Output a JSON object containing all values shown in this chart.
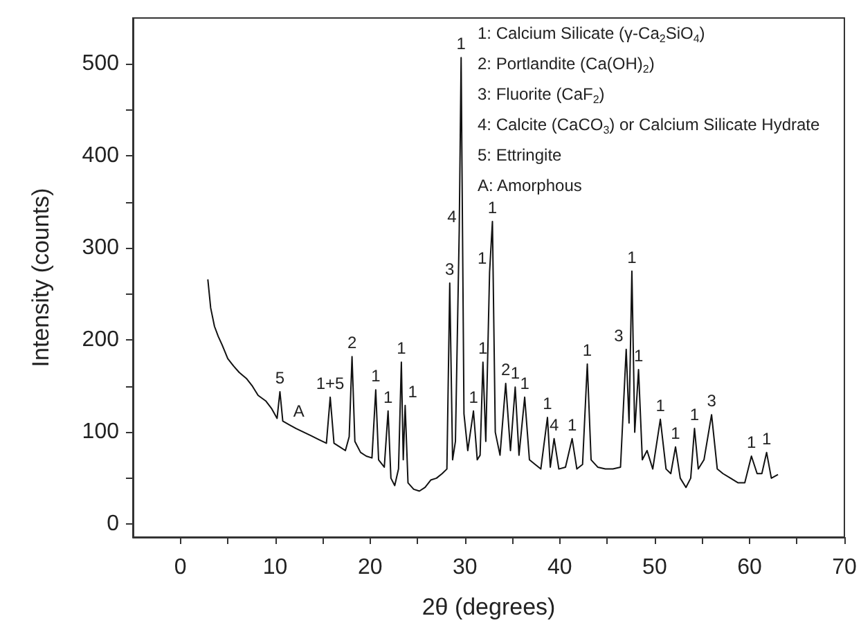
{
  "chart_data": {
    "type": "line",
    "xlabel": "2θ (degrees)",
    "ylabel": "Intensity (counts)",
    "xlim": [
      -5,
      70
    ],
    "ylim": [
      -14,
      550
    ],
    "xticks": [
      0,
      {
        "value": 5,
        "label": null
      },
      10,
      {
        "value": 15,
        "label": null
      },
      20,
      {
        "value": 25,
        "label": null
      },
      30,
      {
        "value": 35,
        "label": null
      },
      40,
      {
        "value": 45,
        "label": null
      },
      50,
      {
        "value": 55,
        "label": null
      },
      60,
      {
        "value": 65,
        "label": null
      },
      70
    ],
    "yticks": [
      0,
      {
        "value": 50,
        "label": null
      },
      100,
      {
        "value": 150,
        "label": null
      },
      200,
      {
        "value": 250,
        "label": null
      },
      300,
      {
        "value": 350,
        "label": null
      },
      400,
      {
        "value": 450,
        "label": null
      },
      500
    ],
    "grid": false,
    "marker": "none",
    "line_style": "solid",
    "series": [
      {
        "color": "#111111",
        "x": [
          2.9,
          3.2,
          3.6,
          4.0,
          4.4,
          5.0,
          5.6,
          6.2,
          7.0,
          7.6,
          8.2,
          9.0,
          9.6,
          10.2,
          10.5,
          10.8,
          11.5,
          12.2,
          13.0,
          13.8,
          14.6,
          15.4,
          15.8,
          16.2,
          16.8,
          17.4,
          17.8,
          18.1,
          18.4,
          19.0,
          19.6,
          20.2,
          20.6,
          20.9,
          21.5,
          21.9,
          22.2,
          22.6,
          23.0,
          23.3,
          23.5,
          23.7,
          24.0,
          24.6,
          25.2,
          25.8,
          26.4,
          27.0,
          27.6,
          28.1,
          28.4,
          28.7,
          29.0,
          29.4,
          29.6,
          29.9,
          30.3,
          30.9,
          31.3,
          31.6,
          31.9,
          32.2,
          32.6,
          32.9,
          33.2,
          33.7,
          34.3,
          34.8,
          35.3,
          35.7,
          36.3,
          36.8,
          37.4,
          38.0,
          38.7,
          39.0,
          39.4,
          39.9,
          40.6,
          41.3,
          41.8,
          42.4,
          42.9,
          43.3,
          44.0,
          44.8,
          45.6,
          46.4,
          47.0,
          47.3,
          47.6,
          47.9,
          48.3,
          48.7,
          49.2,
          49.8,
          50.6,
          51.2,
          51.7,
          52.2,
          52.7,
          53.3,
          53.8,
          54.2,
          54.6,
          55.2,
          56.0,
          56.6,
          57.2,
          58.0,
          58.8,
          59.5,
          60.2,
          60.8,
          61.3,
          61.8,
          62.3,
          63.0
        ],
        "values": [
          266,
          235,
          215,
          204,
          195,
          180,
          172,
          165,
          158,
          150,
          140,
          134,
          126,
          115,
          144,
          112,
          108,
          104,
          100,
          96,
          92,
          88,
          138,
          88,
          84,
          80,
          95,
          182,
          90,
          78,
          74,
          72,
          146,
          70,
          62,
          123,
          50,
          42,
          60,
          176,
          70,
          129,
          45,
          38,
          36,
          40,
          48,
          50,
          55,
          60,
          262,
          70,
          90,
          319,
          507,
          120,
          80,
          123,
          70,
          75,
          176,
          90,
          274,
          329,
          100,
          75,
          153,
          80,
          149,
          75,
          138,
          70,
          65,
          60,
          116,
          62,
          93,
          60,
          62,
          93,
          60,
          65,
          174,
          70,
          62,
          60,
          60,
          62,
          190,
          110,
          275,
          100,
          168,
          70,
          80,
          60,
          114,
          60,
          55,
          84,
          50,
          40,
          50,
          104,
          60,
          70,
          119,
          60,
          55,
          50,
          45,
          45,
          74,
          55,
          55,
          78,
          50,
          54
        ]
      }
    ],
    "annotations": [
      {
        "text": "5",
        "x": 10.5,
        "y": 144
      },
      {
        "text": "A",
        "x": 12.5,
        "y": 108
      },
      {
        "text": "1+5",
        "x": 15.8,
        "y": 138
      },
      {
        "text": "2",
        "x": 18.1,
        "y": 182
      },
      {
        "text": "1",
        "x": 20.6,
        "y": 146
      },
      {
        "text": "1",
        "x": 21.9,
        "y": 123
      },
      {
        "text": "1",
        "x": 23.3,
        "y": 176
      },
      {
        "text": "1",
        "x": 23.7,
        "y": 129
      },
      {
        "text": "3",
        "x": 28.4,
        "y": 262
      },
      {
        "text": "4",
        "x": 29.4,
        "y": 319
      },
      {
        "text": "1",
        "x": 29.6,
        "y": 507
      },
      {
        "text": "1",
        "x": 30.9,
        "y": 123
      },
      {
        "text": "1",
        "x": 31.9,
        "y": 176
      },
      {
        "text": "1",
        "x": 32.6,
        "y": 274
      },
      {
        "text": "1",
        "x": 32.9,
        "y": 329
      },
      {
        "text": "2",
        "x": 34.3,
        "y": 153
      },
      {
        "text": "1",
        "x": 35.3,
        "y": 149
      },
      {
        "text": "1",
        "x": 36.3,
        "y": 138
      },
      {
        "text": "1",
        "x": 38.7,
        "y": 116
      },
      {
        "text": "4",
        "x": 39.4,
        "y": 93
      },
      {
        "text": "1",
        "x": 41.3,
        "y": 93
      },
      {
        "text": "1",
        "x": 42.9,
        "y": 174
      },
      {
        "text": "3",
        "x": 47.0,
        "y": 190
      },
      {
        "text": "1",
        "x": 47.6,
        "y": 275
      },
      {
        "text": "1",
        "x": 48.3,
        "y": 168
      },
      {
        "text": "1",
        "x": 50.6,
        "y": 114
      },
      {
        "text": "1",
        "x": 52.2,
        "y": 84
      },
      {
        "text": "1",
        "x": 54.2,
        "y": 104
      },
      {
        "text": "3",
        "x": 56.0,
        "y": 119
      },
      {
        "text": "1",
        "x": 60.2,
        "y": 74
      },
      {
        "text": "1",
        "x": 61.8,
        "y": 78
      },
      "1: Calcium Silicate (γ-Ca$_{2}$SiO$_{4}$)",
      "2: Portlandite (Ca(OH)$_{2}$)",
      "3: Fluorite (CaF$_{2}$)",
      "4: Calcite (CaCO$_{3}$) or Calcium Silicate Hydrate",
      "5: Ettringite",
      "A: Amorphous"
    ]
  }
}
